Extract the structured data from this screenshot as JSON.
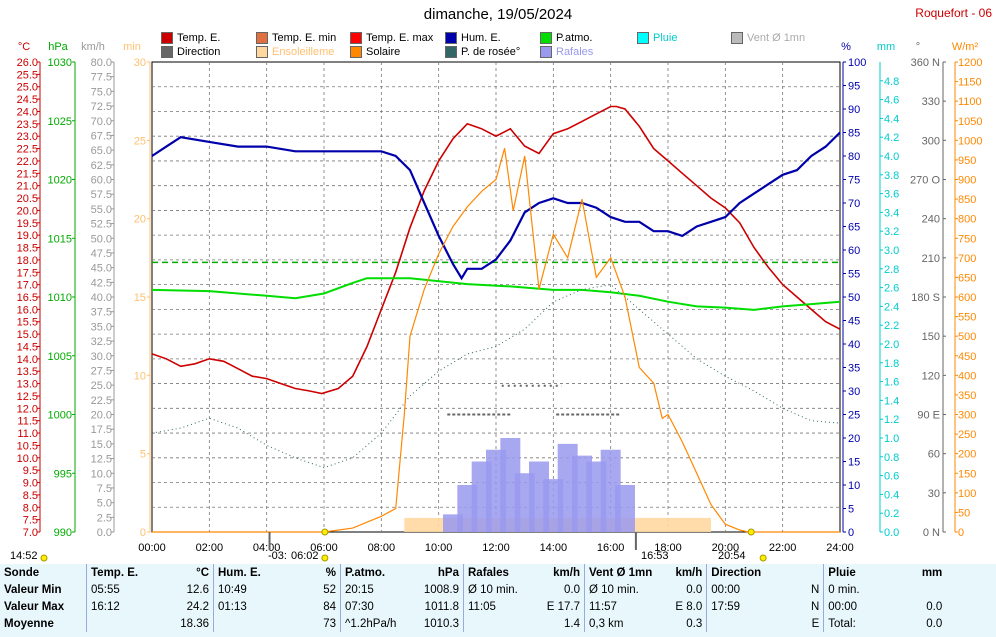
{
  "header": {
    "title": "dimanche, 19/05/2024",
    "station": "Roquefort - 06"
  },
  "legend": [
    {
      "label": "Temp. E.",
      "color": "#cc0000"
    },
    {
      "label": "Temp. E. min",
      "color": "#e07040"
    },
    {
      "label": "Temp. E. max",
      "color": "#ff0000"
    },
    {
      "label": "Hum. E.",
      "color": "#0000aa"
    },
    {
      "label": "P.atmo.",
      "color": "#00dd00"
    },
    {
      "label": "Pluie",
      "color": "#00cccc"
    },
    {
      "label": "Vent Ø 1mn",
      "color": "#aaaaaa"
    },
    {
      "label": "Direction",
      "color": "#666666"
    },
    {
      "label": "Ensoleilleme",
      "color": "#ffd090"
    },
    {
      "label": "Solaire",
      "color": "#ff8800"
    },
    {
      "label": "P. de rosée°",
      "color": "#336666"
    },
    {
      "label": "Rafales",
      "color": "#9999ee"
    }
  ],
  "axis_units": {
    "temp": "°C",
    "press": "hPa",
    "wind": "km/h",
    "min": "min",
    "hum": "%",
    "rain": "mm",
    "dir": "°",
    "solar": "W/m²"
  },
  "sun": {
    "sunrise_left": "14:52",
    "sunrise_time": "06:02",
    "noon_label": "-03:",
    "sunset_time": "20:54",
    "solar_noon": "16:53"
  },
  "chart_data": {
    "type": "line",
    "x_ticks": [
      "00:00",
      "02:00",
      "04:00",
      "06:00",
      "08:00",
      "10:00",
      "12:00",
      "14:00",
      "16:00",
      "18:00",
      "20:00",
      "22:00",
      "24:00"
    ],
    "axes": {
      "temp": {
        "ylim": [
          7.0,
          26.0
        ],
        "ticks": [
          "26.0",
          "25.5",
          "25.0",
          "24.5",
          "24.0",
          "23.5",
          "23.0",
          "22.5",
          "22.0",
          "21.5",
          "21.0",
          "20.5",
          "20.0",
          "19.5",
          "19.0",
          "18.5",
          "18.0",
          "17.5",
          "17.0",
          "16.5",
          "16.0",
          "15.5",
          "15.0",
          "14.5",
          "14.0",
          "13.5",
          "13.0",
          "12.5",
          "12.0",
          "11.5",
          "11.0",
          "10.5",
          "10.0",
          "9.5",
          "9.0",
          "8.5",
          "8.0",
          "7.5",
          "7.0"
        ]
      },
      "press": {
        "ylim": [
          990,
          1030
        ],
        "ticks": [
          "1030",
          "1025",
          "1020",
          "1015",
          "1010",
          "1005",
          "1000",
          "995",
          "990"
        ]
      },
      "wind": {
        "ylim": [
          0,
          80
        ],
        "ticks": [
          "80.0",
          "77.5",
          "75.0",
          "72.5",
          "70.0",
          "67.5",
          "65.0",
          "62.5",
          "60.0",
          "57.5",
          "55.0",
          "52.5",
          "50.0",
          "47.5",
          "45.0",
          "42.5",
          "40.0",
          "37.5",
          "35.0",
          "32.5",
          "30.0",
          "27.5",
          "25.0",
          "22.5",
          "20.0",
          "17.5",
          "15.0",
          "12.5",
          "10.0",
          "7.5",
          "5.0",
          "2.5",
          "0.0"
        ]
      },
      "sunmin": {
        "ylim": [
          0,
          30
        ],
        "ticks": [
          "30",
          "25",
          "20",
          "15",
          "10",
          "5",
          "0"
        ]
      },
      "hum": {
        "ylim": [
          0,
          100
        ],
        "ticks": [
          "100",
          "95",
          "90",
          "85",
          "80",
          "75",
          "70",
          "65",
          "60",
          "55",
          "50",
          "45",
          "40",
          "35",
          "30",
          "25",
          "20",
          "15",
          "10",
          "5",
          "0"
        ]
      },
      "rain": {
        "ylim": [
          0,
          5
        ],
        "ticks": [
          "4.8",
          "4.6",
          "4.4",
          "4.2",
          "4.0",
          "3.8",
          "3.6",
          "3.4",
          "3.2",
          "3.0",
          "2.8",
          "2.6",
          "2.4",
          "2.2",
          "2.0",
          "1.8",
          "1.6",
          "1.4",
          "1.2",
          "1.0",
          "0.8",
          "0.6",
          "0.4",
          "0.2",
          "0.0"
        ]
      },
      "dir": {
        "ylim": [
          0,
          360
        ],
        "ticks": [
          "360 N",
          "330",
          "300",
          "270 O",
          "240",
          "210",
          "180 S",
          "150",
          "120",
          "90 E",
          "60",
          "30",
          "0 N"
        ]
      },
      "solar": {
        "ylim": [
          0,
          1200
        ],
        "ticks": [
          "1200",
          "1150",
          "1100",
          "1050",
          "1000",
          "950",
          "900",
          "850",
          "800",
          "750",
          "700",
          "650",
          "600",
          "550",
          "500",
          "450",
          "400",
          "350",
          "300",
          "250",
          "200",
          "150",
          "100",
          "50",
          "0"
        ]
      }
    },
    "series": [
      {
        "name": "Temp. E.",
        "axis": "temp",
        "x": [
          0,
          0.5,
          1,
          1.5,
          2,
          2.5,
          3,
          3.5,
          4,
          4.5,
          5,
          5.5,
          5.92,
          6.5,
          7,
          7.5,
          8,
          8.5,
          9,
          9.5,
          10,
          10.5,
          11,
          11.5,
          12,
          12.5,
          13,
          13.5,
          14,
          14.5,
          15,
          15.5,
          16,
          16.2,
          16.5,
          17,
          17.5,
          18,
          18.5,
          19,
          19.5,
          20,
          20.5,
          21,
          21.5,
          22,
          22.5,
          23,
          23.5,
          24
        ],
        "y": [
          14.2,
          14.0,
          13.7,
          13.8,
          14.0,
          13.9,
          13.6,
          13.3,
          13.2,
          13.0,
          12.8,
          12.7,
          12.6,
          12.8,
          13.3,
          14.5,
          16.0,
          17.5,
          19.3,
          20.8,
          22.0,
          22.9,
          23.5,
          23.3,
          23.0,
          23.3,
          22.6,
          22.3,
          23.1,
          23.3,
          23.6,
          23.9,
          24.2,
          24.2,
          24.1,
          23.4,
          22.5,
          22.0,
          21.5,
          21.0,
          20.5,
          20.1,
          19.5,
          18.5,
          17.7,
          17.0,
          16.5,
          16.0,
          15.5,
          15.2
        ]
      },
      {
        "name": "Hum. E.",
        "axis": "hum",
        "x": [
          0,
          0.5,
          1,
          2,
          3,
          4,
          5,
          6,
          7,
          8,
          8.5,
          9,
          9.5,
          10,
          10.5,
          10.8,
          11,
          11.5,
          12,
          12.5,
          13,
          13.5,
          14,
          14.5,
          15,
          15.5,
          16,
          16.5,
          17,
          17.5,
          18,
          18.5,
          19,
          19.5,
          20,
          20.5,
          21,
          21.5,
          22,
          22.5,
          23,
          23.5,
          24
        ],
        "y": [
          80,
          82,
          84,
          83,
          82,
          82,
          81,
          81,
          81,
          81,
          80,
          77,
          70,
          63,
          57,
          54,
          56,
          56,
          58,
          62,
          68,
          70,
          71,
          70,
          70,
          69,
          67,
          66,
          66,
          64,
          64,
          63,
          65,
          66,
          67,
          70,
          72,
          74,
          76,
          77,
          80,
          82,
          85
        ]
      },
      {
        "name": "P.atmo.",
        "axis": "press",
        "x": [
          0,
          2,
          4,
          5,
          6,
          7,
          7.5,
          9,
          11,
          12.5,
          14,
          15,
          16,
          17,
          18,
          19,
          20,
          21,
          22,
          23,
          24
        ],
        "y": [
          1010.6,
          1010.5,
          1010.1,
          1009.9,
          1010.3,
          1011.2,
          1011.6,
          1011.6,
          1011.1,
          1010.9,
          1010.6,
          1010.6,
          1010.4,
          1010.1,
          1009.6,
          1009.2,
          1009.1,
          1008.9,
          1009.2,
          1009.4,
          1009.6
        ]
      },
      {
        "name": "P. de rosée°",
        "axis": "temp",
        "x": [
          0,
          1,
          2,
          3,
          4,
          5,
          6,
          7,
          8,
          9,
          10,
          11,
          12,
          13,
          14,
          15,
          16,
          17,
          18,
          19,
          20,
          21,
          22,
          23,
          24
        ],
        "y": [
          11.0,
          11.2,
          11.6,
          11.2,
          10.5,
          10.0,
          9.6,
          10.0,
          11.0,
          12.5,
          13.5,
          14.2,
          14.5,
          15.2,
          16.3,
          16.8,
          17.0,
          16.0,
          15.0,
          14.0,
          13.3,
          12.7,
          12.0,
          11.5,
          11.4
        ]
      },
      {
        "name": "Solaire",
        "axis": "solar",
        "x": [
          0,
          6,
          7,
          8,
          8.5,
          8.8,
          9,
          9.5,
          10,
          10.5,
          11,
          11.5,
          12,
          12.3,
          12.6,
          13,
          13.5,
          14,
          14.5,
          15,
          15.5,
          16,
          16.5,
          17,
          17.5,
          17.8,
          18,
          18.5,
          19,
          19.5,
          20,
          20.5,
          20.8,
          24
        ],
        "y": [
          0,
          0,
          10,
          40,
          60,
          300,
          500,
          620,
          710,
          780,
          830,
          870,
          900,
          980,
          820,
          960,
          620,
          760,
          700,
          850,
          650,
          700,
          600,
          420,
          380,
          290,
          300,
          230,
          150,
          70,
          20,
          5,
          0,
          0
        ]
      },
      {
        "name": "Rafales",
        "axis": "wind",
        "x": [
          10.5,
          11,
          11.5,
          12,
          12.5,
          13,
          13.5,
          14,
          14.5,
          15,
          15.5,
          16,
          16.5
        ],
        "y": [
          3,
          8,
          12,
          14,
          16,
          10,
          12,
          9,
          15,
          13,
          12,
          14,
          8
        ]
      }
    ],
    "reference_lines": [
      {
        "axis": "temp",
        "value": 17.9,
        "color": "#00aa00",
        "style": "dashed"
      }
    ]
  },
  "summary": {
    "headers": [
      "Sonde",
      "Temp. E.",
      "°C",
      "Hum. E.",
      "%",
      "P.atmo.",
      "hPa",
      "Rafales",
      "km/h",
      "Vent Ø 1mn",
      "km/h",
      "Direction",
      "",
      "Pluie",
      "mm"
    ],
    "rows": [
      {
        "label": "Valeur Min",
        "c1": "05:55",
        "c2": "12.6",
        "c3": "10:49",
        "c4": "52",
        "c5": "20:15",
        "c6": "1008.9",
        "c7": "Ø 10 min.",
        "c8": "0.0",
        "c9": "Ø 10 min.",
        "c10": "0.0",
        "c11": "00:00",
        "c12": "N",
        "c13": "0 min.",
        "c14": ""
      },
      {
        "label": "Valeur Max",
        "c1": "16:12",
        "c2": "24.2",
        "c3": "01:13",
        "c4": "84",
        "c5": "07:30",
        "c6": "1011.8",
        "c7": "11:05",
        "c8": "E 17.7",
        "c9": "11:57",
        "c10": "E 8.0",
        "c11": "17:59",
        "c12": "N",
        "c13": "00:00",
        "c14": "0.0"
      },
      {
        "label": "Moyenne",
        "c1": "",
        "c2": "18.36",
        "c3": "",
        "c4": "73",
        "c5": "^1.2hPa/h",
        "c6": "1010.3",
        "c7": "",
        "c8": "1.4",
        "c9": "0,3 km",
        "c10": "0.3",
        "c11": "",
        "c12": "E",
        "c13": "Total:",
        "c14": "0.0"
      }
    ]
  }
}
